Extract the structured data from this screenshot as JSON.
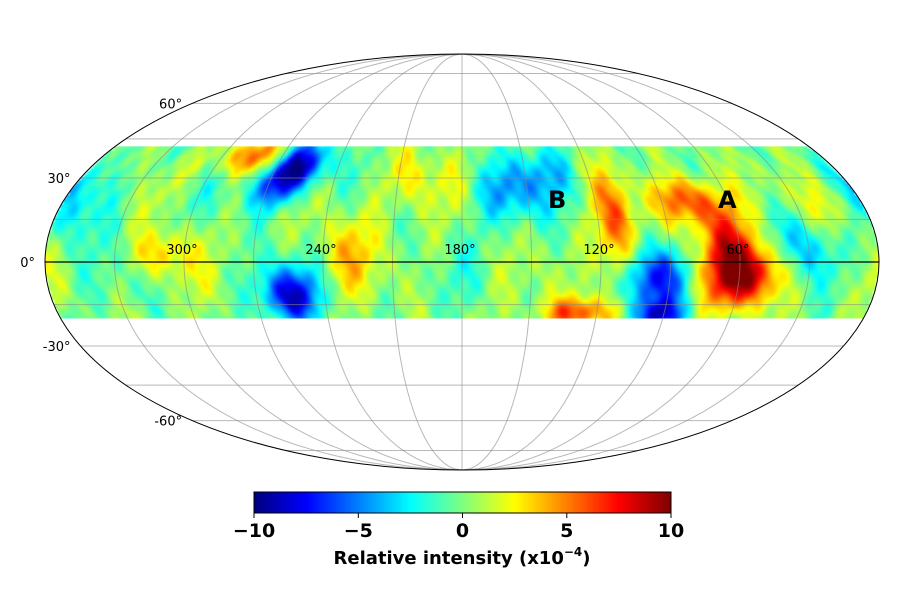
{
  "chart_data": {
    "type": "heatmap",
    "projection": "mollweide",
    "grid": true,
    "data_coverage_lat": [
      -20,
      42
    ],
    "longitude_ticks": [
      {
        "lon": 300,
        "label": "300°"
      },
      {
        "lon": 240,
        "label": "240°"
      },
      {
        "lon": 180,
        "label": "180°"
      },
      {
        "lon": 120,
        "label": "120°"
      },
      {
        "lon": 60,
        "label": "60°"
      }
    ],
    "latitude_ticks": [
      {
        "lat": 60,
        "label": "60°"
      },
      {
        "lat": 30,
        "label": "30°"
      },
      {
        "lat": 0,
        "label": "0°"
      },
      {
        "lat": -30,
        "label": "-30°"
      },
      {
        "lat": -60,
        "label": "-60°"
      }
    ],
    "features": [
      {
        "lon": 55,
        "lat": -5,
        "value": 9,
        "sigma_lon": 12,
        "sigma_lat": 8
      },
      {
        "lon": 66,
        "lat": 9,
        "value": 6,
        "sigma_lon": 8,
        "sigma_lat": 12
      },
      {
        "lon": 80,
        "lat": 22,
        "value": 6,
        "sigma_lon": 10,
        "sigma_lat": 6
      },
      {
        "lon": 112,
        "lat": 10,
        "value": 6,
        "sigma_lon": 6,
        "sigma_lat": 14
      },
      {
        "lon": 128,
        "lat": -18,
        "value": 6,
        "sigma_lon": 12,
        "sigma_lat": 4
      },
      {
        "lon": 95,
        "lat": -6,
        "value": -8,
        "sigma_lon": 9,
        "sigma_lat": 8
      },
      {
        "lon": 93,
        "lat": -19,
        "value": -7,
        "sigma_lon": 8,
        "sigma_lat": 4
      },
      {
        "lon": 255,
        "lat": -12,
        "value": -8,
        "sigma_lon": 9,
        "sigma_lat": 7
      },
      {
        "lon": 258,
        "lat": 35,
        "value": -8,
        "sigma_lon": 10,
        "sigma_lat": 6
      },
      {
        "lon": 265,
        "lat": 27,
        "value": -6,
        "sigma_lon": 8,
        "sigma_lat": 6
      },
      {
        "lon": 285,
        "lat": 38,
        "value": 6,
        "sigma_lon": 10,
        "sigma_lat": 5
      },
      {
        "lon": 310,
        "lat": 3,
        "value": 4,
        "sigma_lon": 8,
        "sigma_lat": 6
      },
      {
        "lon": 160,
        "lat": 25,
        "value": -4,
        "sigma_lon": 10,
        "sigma_lat": 8
      },
      {
        "lon": 30,
        "lat": 5,
        "value": -4,
        "sigma_lon": 10,
        "sigma_lat": 10
      },
      {
        "lon": 18,
        "lat": 18,
        "value": 3,
        "sigma_lon": 8,
        "sigma_lat": 8
      },
      {
        "lon": 205,
        "lat": 30,
        "value": 3,
        "sigma_lon": 10,
        "sigma_lat": 8
      },
      {
        "lon": 350,
        "lat": 20,
        "value": -3,
        "sigma_lon": 10,
        "sigma_lat": 10
      },
      {
        "lon": 230,
        "lat": 5,
        "value": 3,
        "sigma_lon": 10,
        "sigma_lat": 10
      },
      {
        "lon": 140,
        "lat": 32,
        "value": -3,
        "sigma_lon": 10,
        "sigma_lat": 8
      }
    ],
    "annotations": [
      {
        "text": "A",
        "lon": 60,
        "lat": 22
      },
      {
        "text": "B",
        "lon": 137,
        "lat": 22
      }
    ],
    "colorbar": {
      "colormap": "jet",
      "vmin": -10,
      "vmax": 10,
      "ticks": [
        -10,
        -5,
        0,
        5,
        10
      ],
      "tick_labels": [
        "−10",
        "−5",
        "0",
        "5",
        "10"
      ],
      "label_text": "Relative intensity (x10",
      "label_exponent": "−4",
      "label_suffix": ")"
    }
  }
}
